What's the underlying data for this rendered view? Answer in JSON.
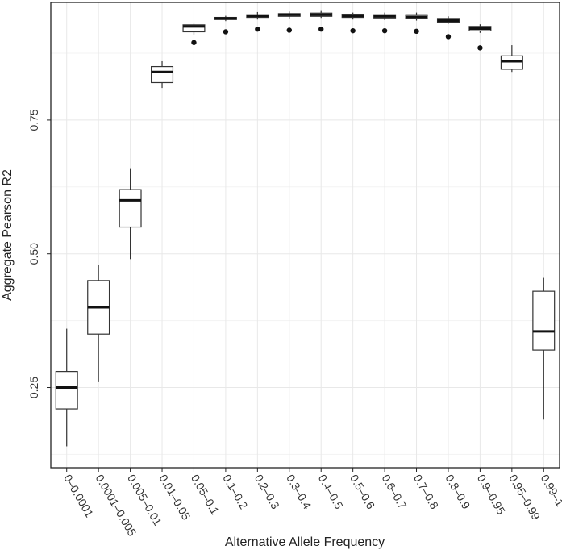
{
  "chart_data": {
    "type": "box",
    "title": "",
    "xlabel": "Alternative Allele Frequency",
    "ylabel": "Aggregate Pearson R2",
    "ylim": [
      0.1,
      0.97
    ],
    "yticks": [
      0.25,
      0.5,
      0.75
    ],
    "ytick_labels": [
      "0.25",
      "0.50",
      "0.75"
    ],
    "grid": true,
    "categories": [
      "0–0.0001",
      "0.0001–0.005",
      "0.005–0.01",
      "0.01–0.05",
      "0.05–0.1",
      "0.1–0.2",
      "0.2–0.3",
      "0.3–0.4",
      "0.4–0.5",
      "0.5–0.6",
      "0.6–0.7",
      "0.7–0.8",
      "0.8–0.9",
      "0.9–0.95",
      "0.95–0.99",
      "0.99–1"
    ],
    "boxes": [
      {
        "min": 0.14,
        "q1": 0.21,
        "median": 0.25,
        "q3": 0.28,
        "max": 0.36,
        "outliers": []
      },
      {
        "min": 0.26,
        "q1": 0.35,
        "median": 0.4,
        "q3": 0.45,
        "max": 0.48,
        "outliers": []
      },
      {
        "min": 0.49,
        "q1": 0.55,
        "median": 0.6,
        "q3": 0.62,
        "max": 0.66,
        "outliers": []
      },
      {
        "min": 0.81,
        "q1": 0.82,
        "median": 0.84,
        "q3": 0.85,
        "max": 0.86,
        "outliers": []
      },
      {
        "min": 0.91,
        "q1": 0.915,
        "median": 0.925,
        "q3": 0.928,
        "max": 0.93,
        "outliers": [
          0.895
        ]
      },
      {
        "min": 0.935,
        "q1": 0.938,
        "median": 0.94,
        "q3": 0.942,
        "max": 0.945,
        "outliers": [
          0.915
        ]
      },
      {
        "min": 0.938,
        "q1": 0.942,
        "median": 0.945,
        "q3": 0.947,
        "max": 0.952,
        "outliers": [
          0.92
        ]
      },
      {
        "min": 0.94,
        "q1": 0.944,
        "median": 0.947,
        "q3": 0.949,
        "max": 0.953,
        "outliers": [
          0.918
        ]
      },
      {
        "min": 0.941,
        "q1": 0.944,
        "median": 0.947,
        "q3": 0.95,
        "max": 0.954,
        "outliers": [
          0.92
        ]
      },
      {
        "min": 0.938,
        "q1": 0.942,
        "median": 0.945,
        "q3": 0.948,
        "max": 0.951,
        "outliers": [
          0.917
        ]
      },
      {
        "min": 0.937,
        "q1": 0.941,
        "median": 0.944,
        "q3": 0.947,
        "max": 0.951,
        "outliers": [
          0.917
        ]
      },
      {
        "min": 0.936,
        "q1": 0.94,
        "median": 0.943,
        "q3": 0.947,
        "max": 0.951,
        "outliers": [
          0.916
        ]
      },
      {
        "min": 0.93,
        "q1": 0.933,
        "median": 0.936,
        "q3": 0.94,
        "max": 0.944,
        "outliers": [
          0.906
        ]
      },
      {
        "min": 0.913,
        "q1": 0.917,
        "median": 0.921,
        "q3": 0.925,
        "max": 0.929,
        "outliers": [
          0.885
        ]
      },
      {
        "min": 0.84,
        "q1": 0.845,
        "median": 0.86,
        "q3": 0.87,
        "max": 0.89,
        "outliers": []
      },
      {
        "min": 0.19,
        "q1": 0.32,
        "median": 0.355,
        "q3": 0.43,
        "max": 0.455,
        "outliers": []
      }
    ],
    "colors": {
      "box_fill": "#ffffff",
      "box_stroke": "#333333",
      "median": "#111111",
      "grid": "#e8e8e8",
      "frame": "#222222",
      "outlier": "#111111"
    }
  }
}
